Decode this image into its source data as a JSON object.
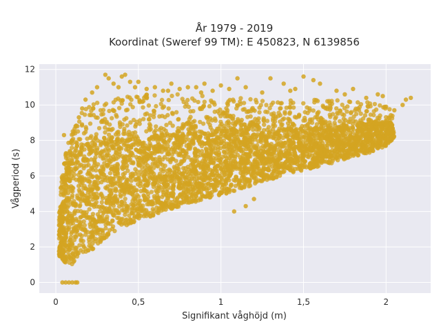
{
  "chart_data": {
    "type": "scatter",
    "title_lines": [
      "År 1979 - 2019",
      "Koordinat (Sweref 99 TM): E 450823, N 6139856"
    ],
    "xlabel": "Signifikant våghöjd (m)",
    "ylabel": "Vågperiod (s)",
    "xlim": [
      -0.1,
      2.27
    ],
    "ylim": [
      -0.6,
      12.3
    ],
    "x_ticks": [
      {
        "value": 0,
        "label": "0"
      },
      {
        "value": 0.5,
        "label": "0,5"
      },
      {
        "value": 1,
        "label": "1"
      },
      {
        "value": 1.5,
        "label": "1,5"
      },
      {
        "value": 2,
        "label": "2"
      }
    ],
    "y_ticks": [
      {
        "value": 0,
        "label": "0"
      },
      {
        "value": 2,
        "label": "2"
      },
      {
        "value": 4,
        "label": "4"
      },
      {
        "value": 6,
        "label": "6"
      },
      {
        "value": 8,
        "label": "8"
      },
      {
        "value": 10,
        "label": "10"
      },
      {
        "value": 12,
        "label": "12"
      }
    ],
    "grid": true,
    "legend": false,
    "marker_color": "#D4A421",
    "plot_background": "#E9E9F1",
    "band": {
      "x": [
        0.02,
        0.06,
        0.1,
        0.15,
        0.2,
        0.3,
        0.4,
        0.5,
        0.6,
        0.7,
        0.8,
        0.9,
        1.0,
        1.1,
        1.2,
        1.3,
        1.4,
        1.5,
        1.6,
        1.7,
        1.8,
        1.9,
        2.0,
        2.05
      ],
      "y_low": [
        1.5,
        1.1,
        1.0,
        1.2,
        1.6,
        2.5,
        3.1,
        3.5,
        3.8,
        4.1,
        4.4,
        4.7,
        4.9,
        5.2,
        5.5,
        5.8,
        6.1,
        6.3,
        6.5,
        6.8,
        7.1,
        7.3,
        7.7,
        8.1
      ],
      "y_high": [
        5.0,
        7.5,
        8.5,
        9.5,
        10.0,
        10.4,
        10.5,
        10.6,
        10.6,
        10.6,
        10.6,
        10.5,
        10.5,
        10.4,
        10.4,
        10.3,
        10.3,
        10.3,
        10.3,
        10.3,
        10.2,
        10.2,
        10.0,
        9.6
      ],
      "core_high": [
        3.5,
        5.8,
        7.0,
        7.4,
        7.6,
        7.8,
        8.0,
        8.1,
        8.2,
        8.3,
        8.4,
        8.5,
        8.5,
        8.6,
        8.6,
        8.6,
        8.6,
        8.7,
        8.7,
        8.7,
        8.8,
        8.9,
        9.0,
        9.0
      ]
    },
    "points": [
      [
        0.04,
        0
      ],
      [
        0.06,
        0
      ],
      [
        0.08,
        0
      ],
      [
        0.1,
        0
      ],
      [
        0.12,
        0
      ],
      [
        0.13,
        0
      ],
      [
        0.05,
        8.3
      ],
      [
        0.1,
        8.0
      ],
      [
        0.12,
        8.8
      ],
      [
        0.14,
        9.3
      ],
      [
        0.16,
        9.8
      ],
      [
        0.18,
        10.3
      ],
      [
        0.22,
        10.7
      ],
      [
        0.25,
        11.0
      ],
      [
        0.3,
        11.7
      ],
      [
        0.32,
        11.5
      ],
      [
        0.35,
        11.2
      ],
      [
        0.38,
        11.0
      ],
      [
        0.4,
        11.6
      ],
      [
        0.42,
        11.7
      ],
      [
        0.45,
        11.3
      ],
      [
        0.48,
        11.0
      ],
      [
        0.5,
        11.3
      ],
      [
        0.55,
        10.9
      ],
      [
        0.6,
        11.0
      ],
      [
        0.65,
        10.8
      ],
      [
        0.7,
        11.2
      ],
      [
        0.75,
        10.9
      ],
      [
        0.8,
        11.0
      ],
      [
        0.85,
        11.0
      ],
      [
        0.9,
        11.2
      ],
      [
        1.0,
        11.1
      ],
      [
        1.05,
        10.9
      ],
      [
        1.1,
        11.5
      ],
      [
        1.15,
        11.0
      ],
      [
        1.3,
        11.5
      ],
      [
        1.38,
        11.2
      ],
      [
        1.45,
        10.9
      ],
      [
        1.5,
        11.6
      ],
      [
        1.56,
        11.4
      ],
      [
        1.6,
        11.2
      ],
      [
        1.7,
        10.8
      ],
      [
        1.8,
        10.9
      ],
      [
        1.95,
        10.6
      ],
      [
        2.0,
        9.9
      ],
      [
        2.05,
        9.7
      ],
      [
        2.1,
        10.0
      ],
      [
        2.15,
        10.4
      ],
      [
        2.12,
        10.3
      ],
      [
        1.98,
        10.5
      ],
      [
        1.88,
        10.4
      ],
      [
        1.75,
        10.6
      ],
      [
        1.42,
        10.8
      ],
      [
        1.25,
        10.7
      ],
      [
        0.95,
        10.8
      ],
      [
        0.88,
        10.7
      ],
      [
        0.68,
        10.8
      ],
      [
        1.08,
        4.0
      ],
      [
        1.2,
        4.7
      ],
      [
        1.15,
        4.3
      ]
    ]
  }
}
